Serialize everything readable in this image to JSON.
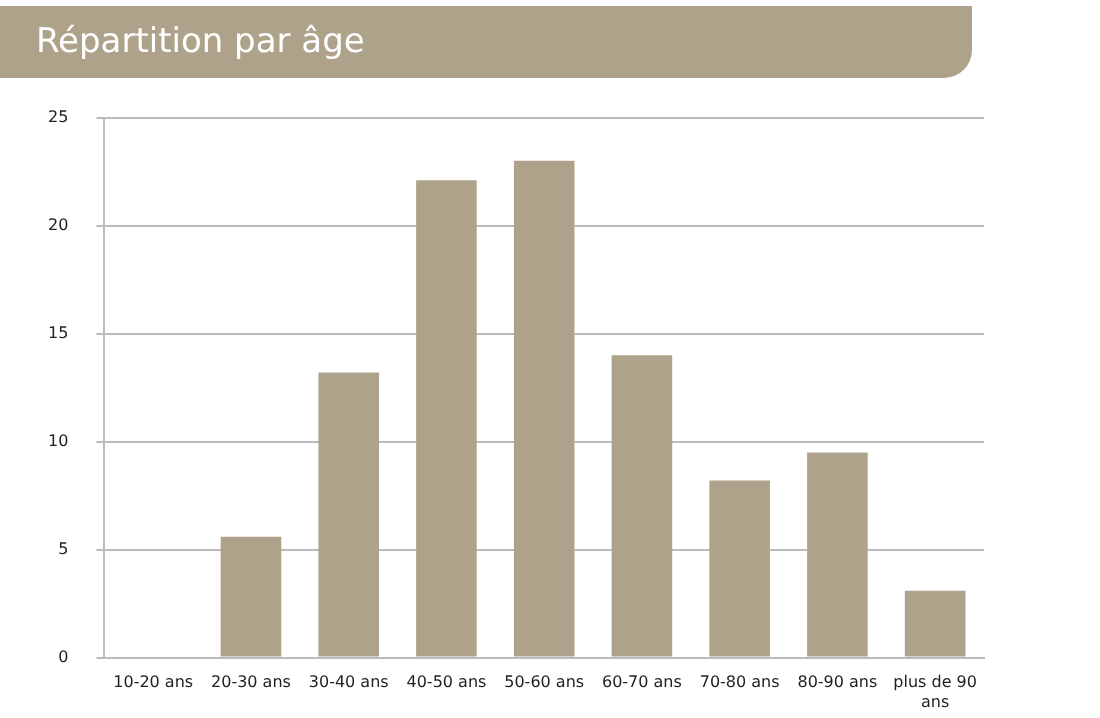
{
  "chart_data": {
    "type": "bar",
    "title": "Répartition par âge",
    "categories": [
      "10-20 ans",
      "20-30 ans",
      "30-40 ans",
      "40-50 ans",
      "50-60 ans",
      "60-70 ans",
      "70-80 ans",
      "80-90 ans",
      "plus de 90 ans"
    ],
    "values": [
      0,
      5.6,
      13.2,
      22.1,
      23,
      14,
      8.2,
      9.5,
      3.1
    ],
    "color": "#aea38a",
    "ylim": [
      0,
      25
    ],
    "yticks": [
      0,
      5,
      10,
      15,
      20,
      25
    ],
    "grid": "y"
  }
}
